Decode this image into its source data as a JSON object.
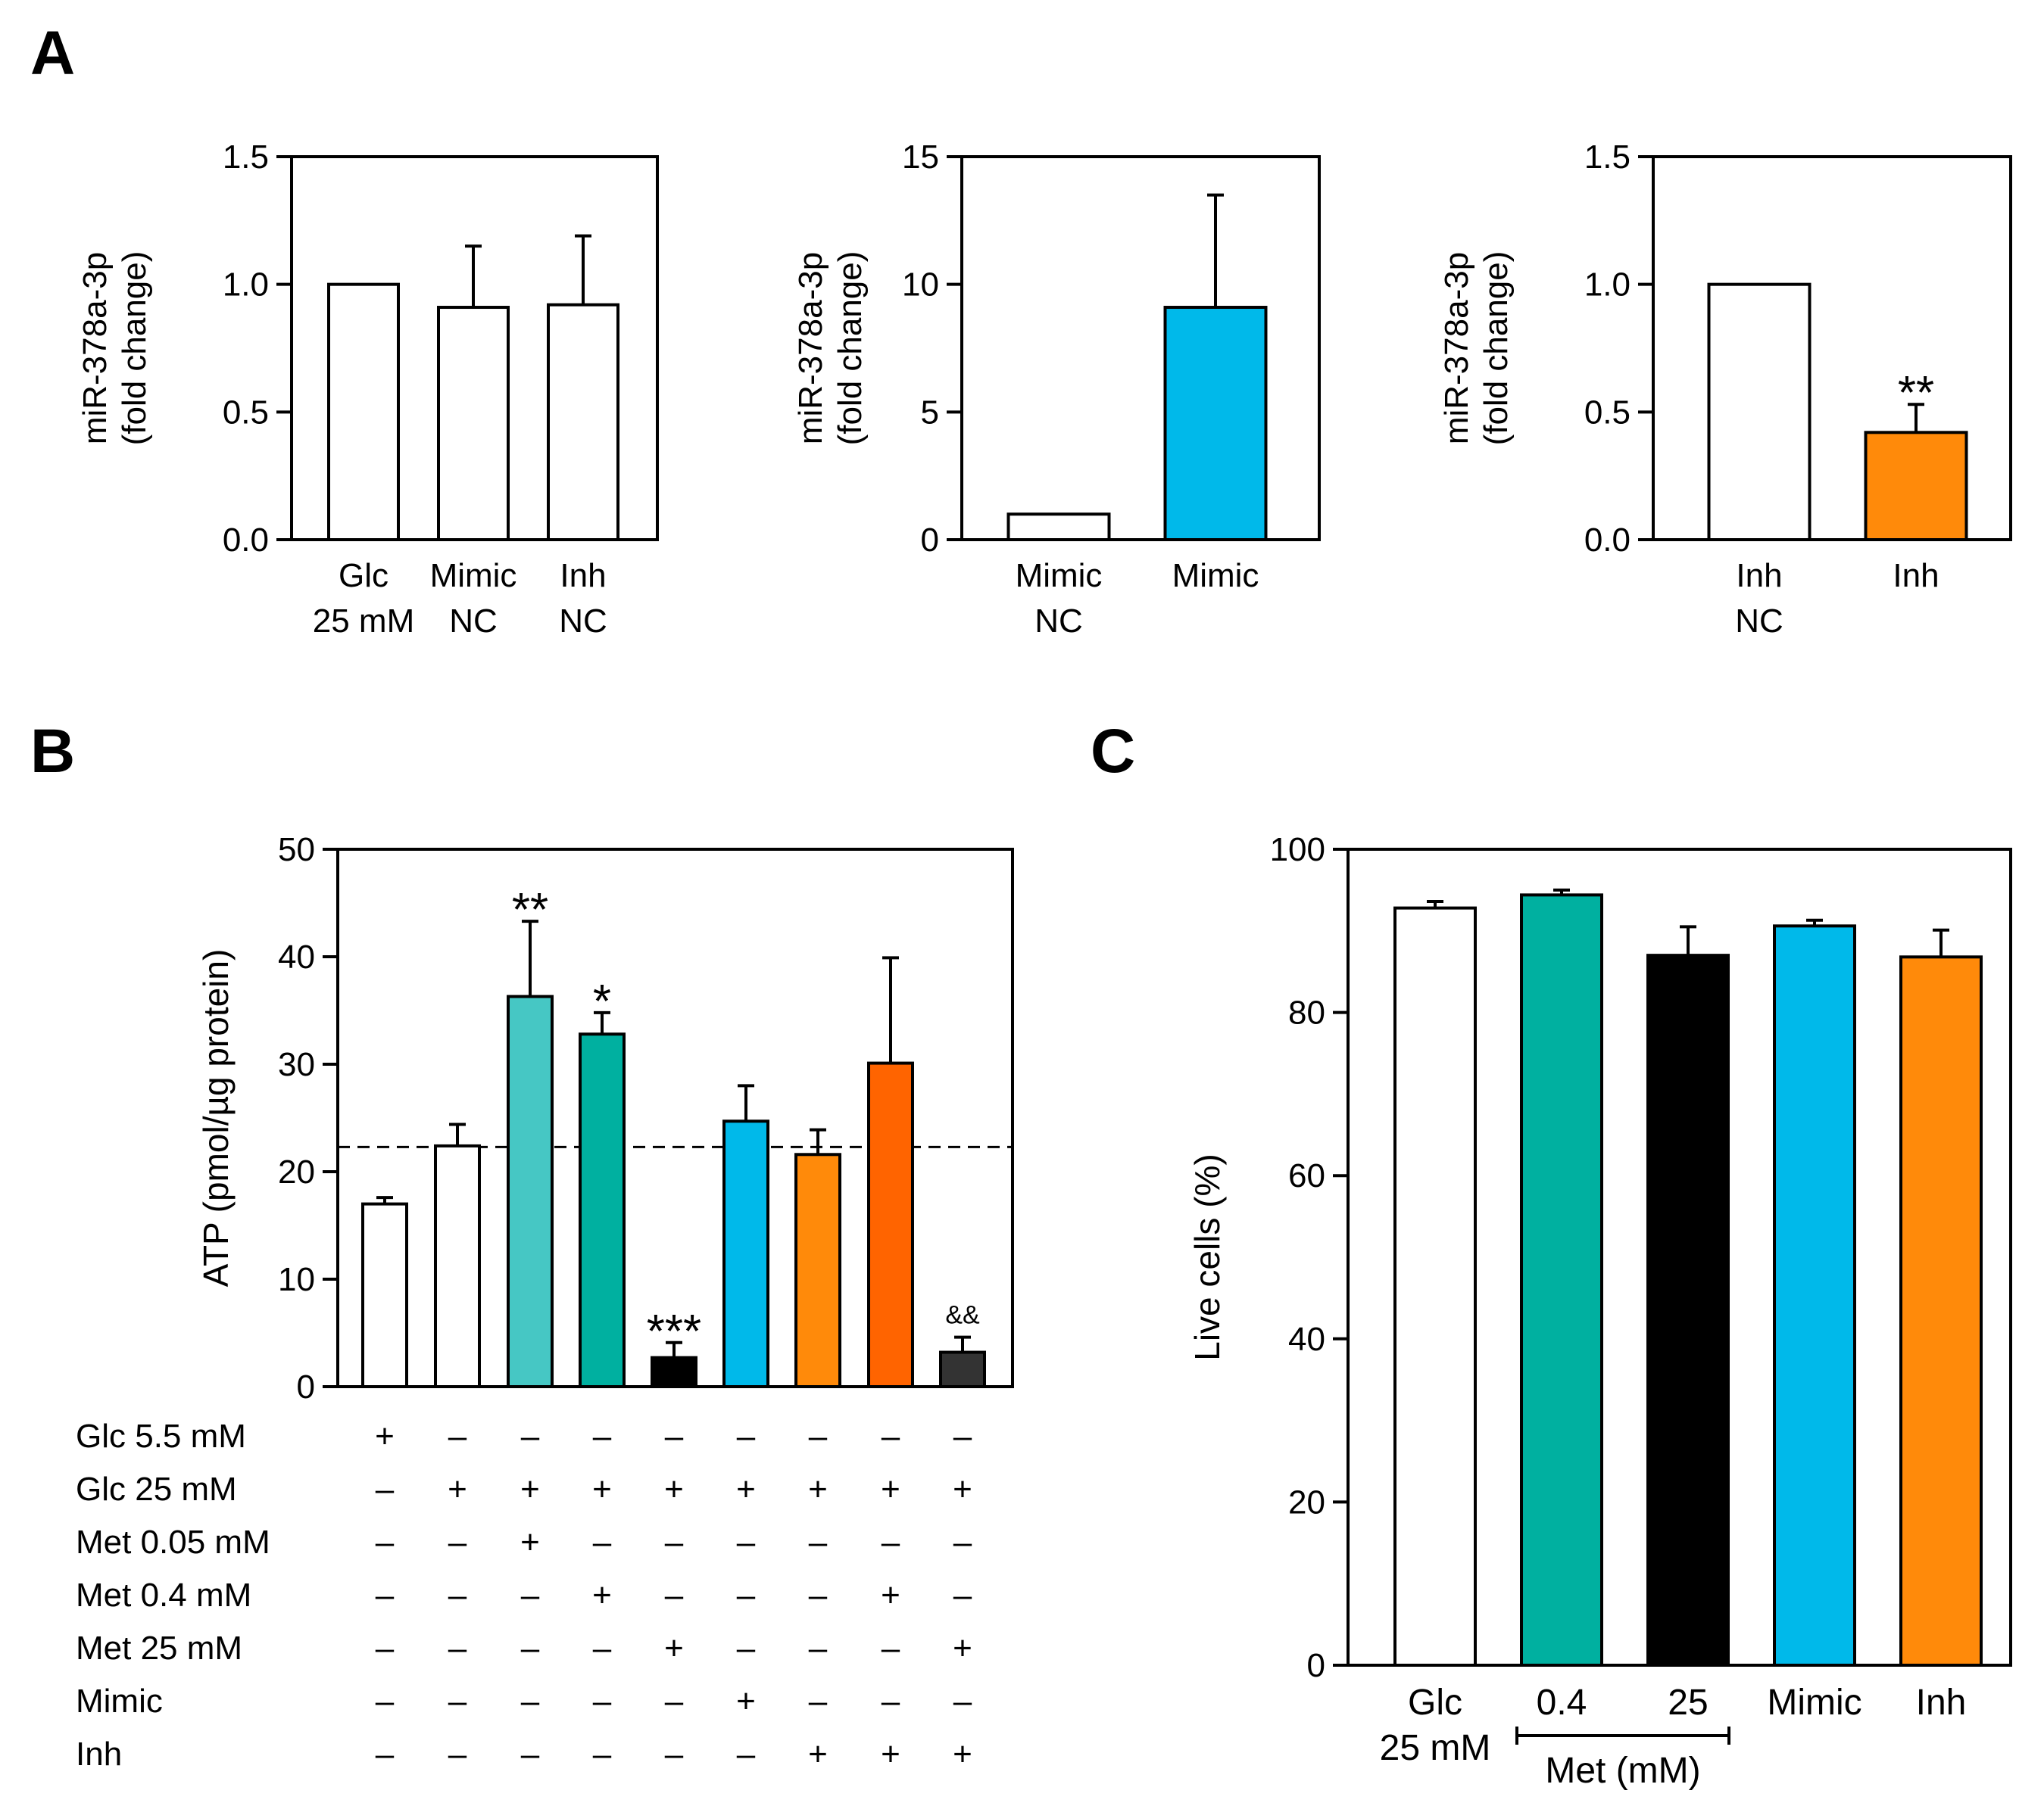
{
  "panel_labels": {
    "a": "A",
    "b": "B",
    "c": "C"
  },
  "colors": {
    "white": "#ffffff",
    "light_teal": "#46c7c4",
    "teal": "#00b0a0",
    "black": "#000000",
    "blue": "#00b9ea",
    "orange": "#ff8a0a",
    "dark_orange": "#ff6400",
    "dark_gray": "#333333"
  },
  "chart_data": [
    {
      "id": "A1",
      "type": "bar",
      "ylabel_lines": [
        "miR-378a-3p",
        "(fold change)"
      ],
      "ylim": [
        0,
        1.5
      ],
      "yticks": [
        "0.0",
        "0.5",
        "1.0",
        "1.5"
      ],
      "categories": [
        [
          "Glc",
          "25 mM"
        ],
        [
          "Mimic",
          "NC"
        ],
        [
          "Inh",
          "NC"
        ]
      ],
      "values": [
        1.0,
        0.91,
        0.92
      ],
      "errors": [
        0,
        0.24,
        0.27
      ],
      "colors": [
        "#ffffff",
        "#ffffff",
        "#ffffff"
      ],
      "annotations": [
        "",
        "",
        ""
      ]
    },
    {
      "id": "A2",
      "type": "bar",
      "ylabel_lines": [
        "miR-378a-3p",
        "(fold change)"
      ],
      "ylim": [
        0,
        15
      ],
      "yticks": [
        "0",
        "5",
        "10",
        "15"
      ],
      "categories": [
        [
          "Mimic",
          "NC"
        ],
        [
          "Mimic"
        ]
      ],
      "values": [
        1.0,
        9.1
      ],
      "errors": [
        0,
        4.4
      ],
      "colors": [
        "#ffffff",
        "#00b9ea"
      ],
      "annotations": [
        "",
        ""
      ]
    },
    {
      "id": "A3",
      "type": "bar",
      "ylabel_lines": [
        "miR-378a-3p",
        "(fold change)"
      ],
      "ylim": [
        0,
        1.5
      ],
      "yticks": [
        "0.0",
        "0.5",
        "1.0",
        "1.5"
      ],
      "categories": [
        [
          "Inh",
          "NC"
        ],
        [
          "Inh"
        ]
      ],
      "values": [
        1.0,
        0.42
      ],
      "errors": [
        0,
        0.11
      ],
      "colors": [
        "#ffffff",
        "#ff8a0a"
      ],
      "annotations": [
        "",
        "**"
      ]
    },
    {
      "id": "B",
      "type": "bar",
      "ylabel": "ATP (pmol/µg protein)",
      "ylim": [
        0,
        50
      ],
      "yticks": [
        "0",
        "10",
        "20",
        "30",
        "40",
        "50"
      ],
      "reference_line": 22.3,
      "values": [
        17.0,
        22.4,
        36.3,
        32.8,
        2.7,
        24.7,
        21.6,
        30.1,
        3.2
      ],
      "errors": [
        0.6,
        2.0,
        7.0,
        2.0,
        1.4,
        3.3,
        2.3,
        9.8,
        1.4
      ],
      "colors": [
        "#ffffff",
        "#ffffff",
        "#46c7c4",
        "#00b0a0",
        "#000000",
        "#00b9ea",
        "#ff8a0a",
        "#ff6400",
        "#333333"
      ],
      "annotations": [
        "",
        "",
        "**",
        "*",
        "***",
        "",
        "",
        "",
        "&&"
      ],
      "conditions": [
        {
          "label": "Glc 5.5 mM",
          "marks": [
            "+",
            "–",
            "–",
            "–",
            "–",
            "–",
            "–",
            "–",
            "–"
          ]
        },
        {
          "label": "Glc 25 mM",
          "marks": [
            "–",
            "+",
            "+",
            "+",
            "+",
            "+",
            "+",
            "+",
            "+"
          ]
        },
        {
          "label": "Met 0.05 mM",
          "marks": [
            "–",
            "–",
            "+",
            "–",
            "–",
            "–",
            "–",
            "–",
            "–"
          ]
        },
        {
          "label": "Met 0.4 mM",
          "marks": [
            "–",
            "–",
            "–",
            "+",
            "–",
            "–",
            "–",
            "+",
            "–"
          ]
        },
        {
          "label": "Met 25 mM",
          "marks": [
            "–",
            "–",
            "–",
            "–",
            "+",
            "–",
            "–",
            "–",
            "+"
          ]
        },
        {
          "label": "Mimic",
          "marks": [
            "–",
            "–",
            "–",
            "–",
            "–",
            "+",
            "–",
            "–",
            "–"
          ]
        },
        {
          "label": "Inh",
          "marks": [
            "–",
            "–",
            "–",
            "–",
            "–",
            "–",
            "+",
            "+",
            "+"
          ]
        }
      ]
    },
    {
      "id": "C",
      "type": "bar",
      "ylabel": "Live cells (%)",
      "ylim": [
        0,
        100
      ],
      "yticks": [
        "0",
        "20",
        "40",
        "60",
        "80",
        "100"
      ],
      "categories": [
        [
          "Glc",
          "25 mM"
        ],
        [
          "0.4"
        ],
        [
          "25"
        ],
        [
          "Mimic"
        ],
        [
          "Inh"
        ]
      ],
      "values": [
        92.8,
        94.4,
        87.0,
        90.6,
        86.8
      ],
      "errors": [
        0.8,
        0.6,
        3.5,
        0.7,
        3.3
      ],
      "colors": [
        "#ffffff",
        "#00b0a0",
        "#000000",
        "#00b9ea",
        "#ff8a0a"
      ],
      "annotations": [
        "",
        "",
        "",
        "",
        ""
      ],
      "group_label": "Met (mM)"
    }
  ]
}
